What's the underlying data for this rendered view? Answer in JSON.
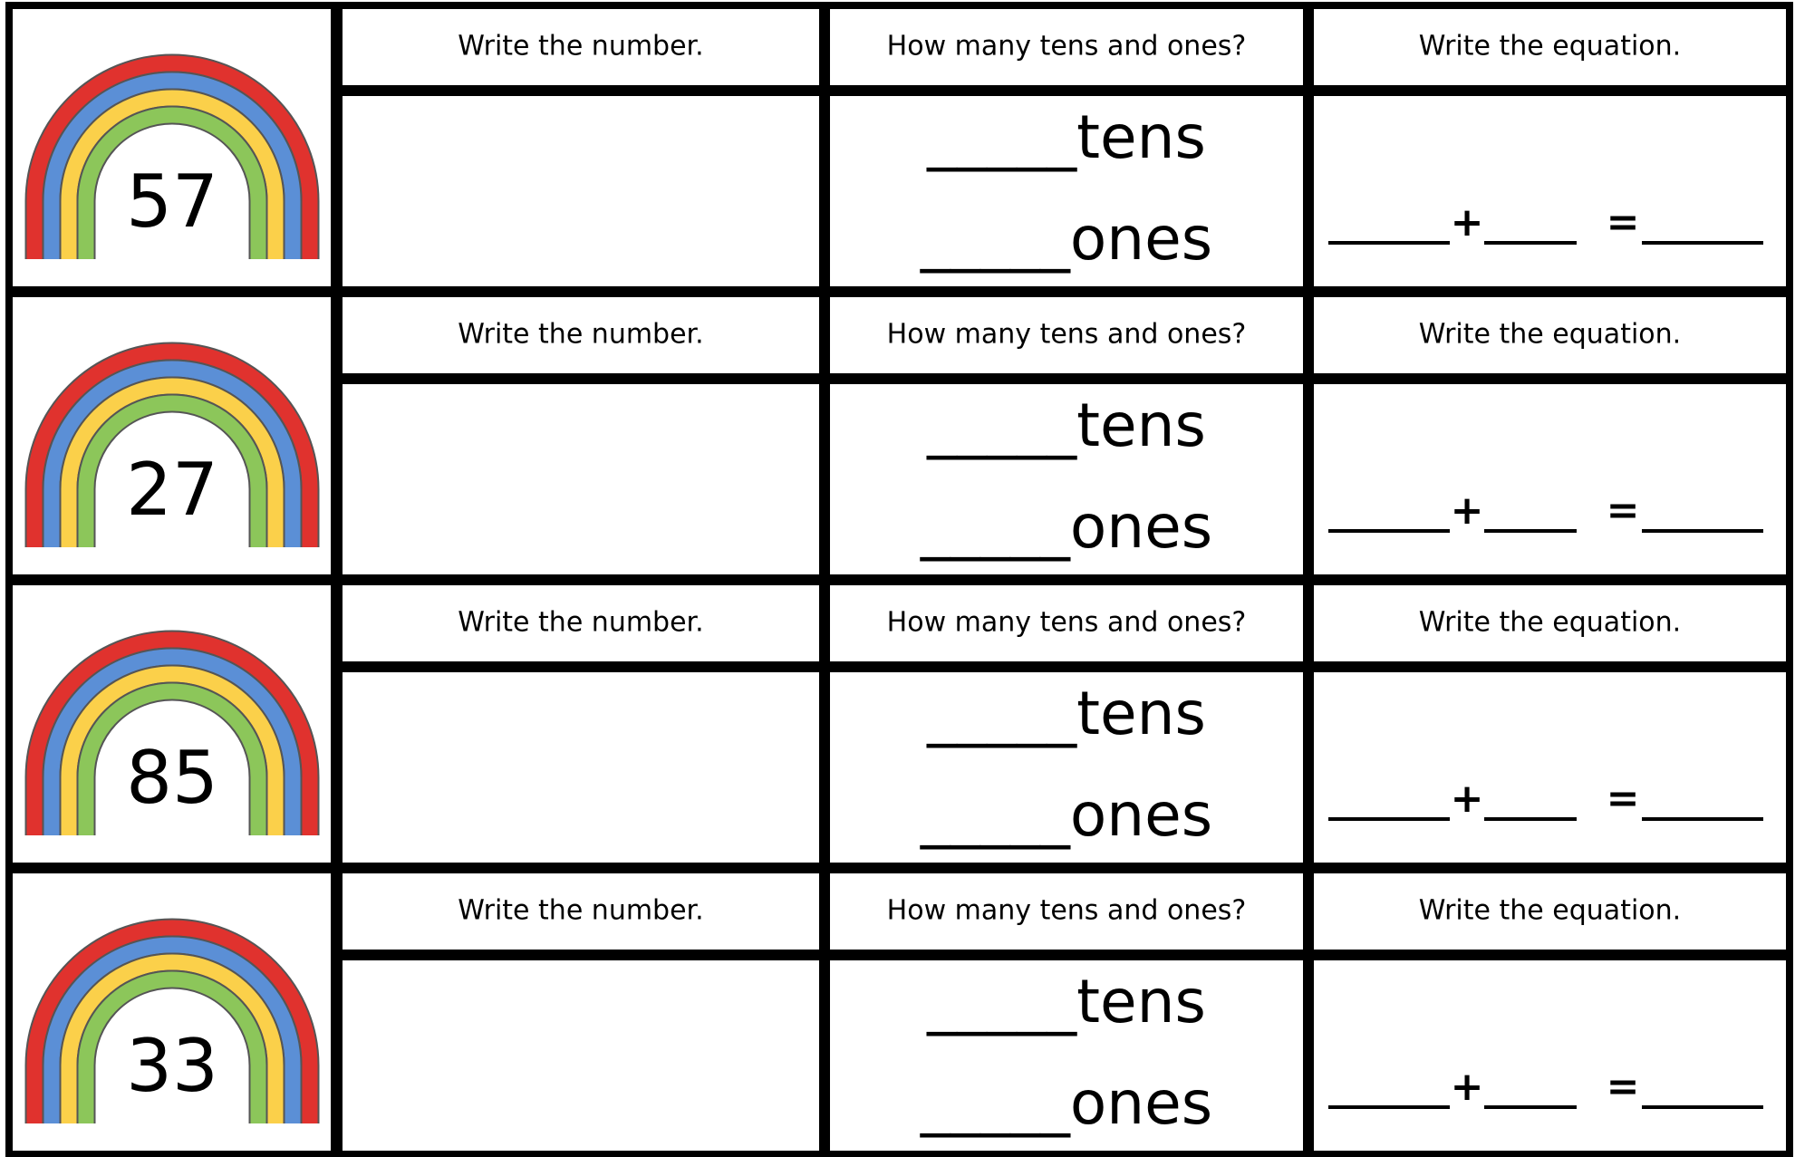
{
  "rows": [
    {
      "number": "57",
      "write_number": "Write the number.",
      "tens_ones_question": "How many tens and ones?",
      "equation_prompt": "Write the equation.",
      "tens": "_____tens",
      "ones": "_____ones",
      "plus": "+",
      "equals": "="
    },
    {
      "number": "27",
      "write_number": "Write the number.",
      "tens_ones_question": "How many tens and ones?",
      "equation_prompt": "Write the equation.",
      "tens": "_____tens",
      "ones": "_____ones",
      "plus": "+",
      "equals": "="
    },
    {
      "number": "85",
      "write_number": "Write the number.",
      "tens_ones_question": "How many tens and ones?",
      "equation_prompt": "Write the equation.",
      "tens": "_____tens",
      "ones": "_____ones",
      "plus": "+",
      "equals": "="
    },
    {
      "number": "33",
      "write_number": "Write the number.",
      "tens_ones_question": "How many tens and ones?",
      "equation_prompt": "Write the equation.",
      "tens": "_____tens",
      "ones": "_____ones",
      "plus": "+",
      "equals": "="
    }
  ]
}
